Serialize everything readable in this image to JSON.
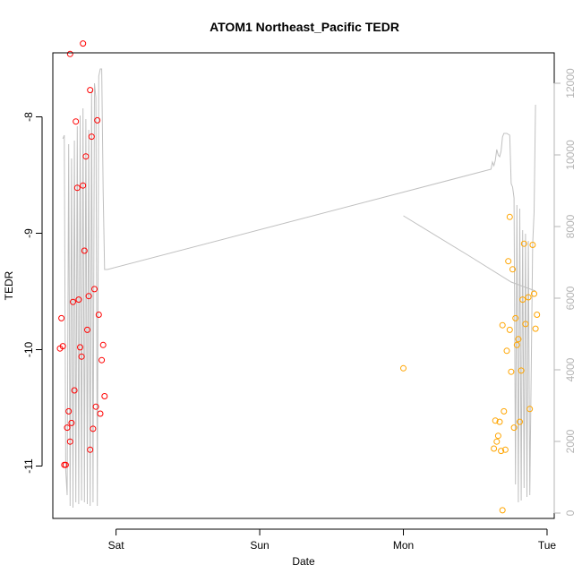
{
  "chart_data": {
    "type": "scatter",
    "title": "ATOM1 Northeast_Pacific TEDR",
    "xlabel": "Date",
    "ylabel": "TEDR",
    "x_axis": {
      "ticks": [
        {
          "label": "Sat",
          "value": 0
        },
        {
          "label": "Sun",
          "value": 1
        },
        {
          "label": "Mon",
          "value": 2
        },
        {
          "label": "Tue",
          "value": 3
        }
      ],
      "range": [
        -0.44,
        3.05
      ]
    },
    "y_axis": {
      "ticks": [
        -8,
        -9,
        -10,
        -11
      ],
      "range": [
        -11.45,
        -7.45
      ]
    },
    "y2_axis": {
      "ticks": [
        0,
        2000,
        4000,
        6000,
        8000,
        10000,
        12000
      ],
      "range": [
        -150,
        12850
      ],
      "color": "#b5b5b5"
    },
    "series": [
      {
        "marker": "circle-open",
        "color": "#ff0000",
        "points": [
          [
            -0.38,
            -9.73
          ],
          [
            -0.37,
            -9.97
          ],
          [
            -0.39,
            -9.99
          ],
          [
            -0.36,
            -10.99
          ],
          [
            -0.35,
            -10.99
          ],
          [
            -0.34,
            -10.67
          ],
          [
            -0.33,
            -10.53
          ],
          [
            -0.32,
            -10.79
          ],
          [
            -0.31,
            -10.63
          ],
          [
            -0.3,
            -9.59
          ],
          [
            -0.29,
            -10.35
          ],
          [
            -0.28,
            -8.04
          ],
          [
            -0.27,
            -8.61
          ],
          [
            -0.26,
            -9.57
          ],
          [
            -0.25,
            -9.98
          ],
          [
            -0.24,
            -10.06
          ],
          [
            -0.23,
            -8.59
          ],
          [
            -0.22,
            -9.15
          ],
          [
            -0.21,
            -8.34
          ],
          [
            -0.2,
            -9.83
          ],
          [
            -0.19,
            -9.54
          ],
          [
            -0.18,
            -10.86
          ],
          [
            -0.17,
            -8.17
          ],
          [
            -0.16,
            -10.68
          ],
          [
            -0.15,
            -9.48
          ],
          [
            -0.14,
            -10.49
          ],
          [
            -0.13,
            -8.03
          ],
          [
            -0.12,
            -9.7
          ],
          [
            -0.11,
            -10.55
          ],
          [
            -0.1,
            -10.09
          ],
          [
            -0.09,
            -9.96
          ],
          [
            -0.08,
            -10.4
          ],
          [
            -0.32,
            -7.46
          ],
          [
            -0.23,
            -7.37
          ],
          [
            -0.18,
            -7.77
          ]
        ]
      },
      {
        "marker": "circle-open",
        "color": "#ffa500",
        "points": [
          [
            2.0,
            -10.16
          ],
          [
            2.63,
            -10.85
          ],
          [
            2.64,
            -10.61
          ],
          [
            2.65,
            -10.79
          ],
          [
            2.66,
            -10.74
          ],
          [
            2.67,
            -10.62
          ],
          [
            2.68,
            -10.87
          ],
          [
            2.69,
            -9.79
          ],
          [
            2.7,
            -10.53
          ],
          [
            2.71,
            -10.86
          ],
          [
            2.72,
            -10.01
          ],
          [
            2.73,
            -9.24
          ],
          [
            2.74,
            -9.83
          ],
          [
            2.75,
            -10.19
          ],
          [
            2.76,
            -9.31
          ],
          [
            2.77,
            -10.67
          ],
          [
            2.78,
            -9.73
          ],
          [
            2.79,
            -9.96
          ],
          [
            2.8,
            -9.91
          ],
          [
            2.81,
            -10.62
          ],
          [
            2.82,
            -10.18
          ],
          [
            2.83,
            -9.57
          ],
          [
            2.84,
            -9.09
          ],
          [
            2.85,
            -9.78
          ],
          [
            2.87,
            -9.55
          ],
          [
            2.88,
            -10.51
          ],
          [
            2.9,
            -9.1
          ],
          [
            2.91,
            -9.52
          ],
          [
            2.92,
            -9.82
          ],
          [
            2.93,
            -9.7
          ],
          [
            2.74,
            -8.86
          ],
          [
            2.69,
            -11.38
          ]
        ]
      }
    ],
    "altitude_line": {
      "color": "#c0c0c0",
      "axis": "y2",
      "segments": [
        [
          [
            -0.37,
            10450
          ],
          [
            -0.36,
            10550
          ],
          [
            -0.35,
            1200
          ],
          [
            -0.34,
            500
          ],
          [
            -0.33,
            10300
          ],
          [
            -0.32,
            200
          ],
          [
            -0.31,
            9900
          ],
          [
            -0.3,
            150
          ],
          [
            -0.29,
            10400
          ],
          [
            -0.28,
            300
          ],
          [
            -0.27,
            10800
          ],
          [
            -0.26,
            250
          ],
          [
            -0.25,
            11100
          ],
          [
            -0.24,
            350
          ],
          [
            -0.23,
            11300
          ],
          [
            -0.22,
            300
          ],
          [
            -0.21,
            11000
          ],
          [
            -0.2,
            250
          ],
          [
            -0.19,
            10700
          ],
          [
            -0.18,
            200
          ],
          [
            -0.17,
            11800
          ],
          [
            -0.16,
            300
          ],
          [
            -0.15,
            12000
          ],
          [
            -0.14,
            11600
          ],
          [
            -0.13,
            200
          ],
          [
            -0.12,
            12200
          ],
          [
            -0.11,
            12400
          ],
          [
            -0.1,
            12400
          ],
          [
            -0.09,
            9000
          ],
          [
            -0.08,
            6800
          ],
          [
            -0.06,
            6800
          ],
          [
            2.61,
            9600
          ],
          [
            2.62,
            9800
          ],
          [
            2.63,
            9700
          ],
          [
            2.64,
            9850
          ],
          [
            2.65,
            10150
          ],
          [
            2.66,
            10000
          ],
          [
            2.67,
            9950
          ],
          [
            2.68,
            10100
          ],
          [
            2.69,
            10500
          ],
          [
            2.7,
            10600
          ],
          [
            2.72,
            10600
          ],
          [
            2.74,
            10550
          ],
          [
            2.75,
            9200
          ],
          [
            2.76,
            9100
          ],
          [
            2.77,
            8800
          ],
          [
            2.78,
            800
          ],
          [
            2.79,
            8600
          ],
          [
            2.8,
            300
          ],
          [
            2.81,
            8500
          ],
          [
            2.82,
            350
          ],
          [
            2.83,
            7900
          ],
          [
            2.84,
            700
          ],
          [
            2.85,
            7800
          ],
          [
            2.86,
            450
          ],
          [
            2.87,
            7600
          ],
          [
            2.88,
            500
          ],
          [
            2.9,
            7500
          ],
          [
            2.91,
            8400
          ],
          [
            2.92,
            11400
          ]
        ],
        [
          [
            2.0,
            8300
          ],
          [
            2.45,
            7200
          ],
          [
            2.75,
            6450
          ],
          [
            2.92,
            6200
          ]
        ]
      ]
    }
  }
}
